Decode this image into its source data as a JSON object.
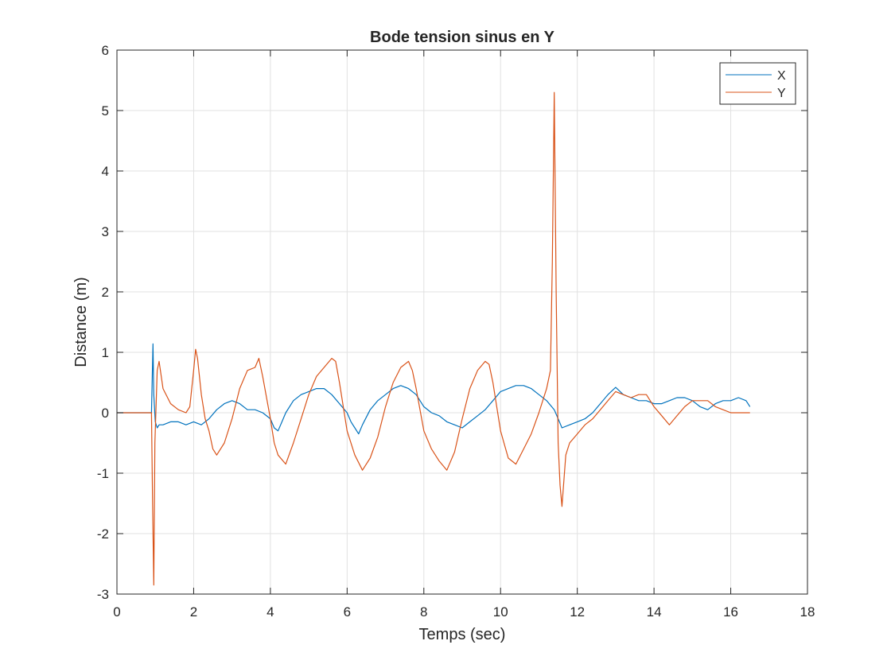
{
  "chart_data": {
    "type": "line",
    "title": "Bode tension sinus en Y",
    "xlabel": "Temps (sec)",
    "ylabel": "Distance (m)",
    "xlim": [
      0,
      18
    ],
    "ylim": [
      -3,
      6
    ],
    "xticks": [
      0,
      2,
      4,
      6,
      8,
      10,
      12,
      14,
      16,
      18
    ],
    "yticks": [
      -3,
      -2,
      -1,
      0,
      1,
      2,
      3,
      4,
      5,
      6
    ],
    "grid": true,
    "legend_position": "top-right",
    "series": [
      {
        "name": "X",
        "color": "#0072BD",
        "x": [
          0,
          0.9,
          0.92,
          0.94,
          0.96,
          1.0,
          1.05,
          1.1,
          1.2,
          1.4,
          1.6,
          1.8,
          2.0,
          2.2,
          2.4,
          2.6,
          2.8,
          3.0,
          3.2,
          3.4,
          3.6,
          3.8,
          4.0,
          4.1,
          4.2,
          4.3,
          4.4,
          4.6,
          4.8,
          5.0,
          5.2,
          5.4,
          5.6,
          5.8,
          6.0,
          6.1,
          6.2,
          6.3,
          6.4,
          6.6,
          6.8,
          7.0,
          7.2,
          7.4,
          7.6,
          7.8,
          8.0,
          8.2,
          8.4,
          8.6,
          8.8,
          9.0,
          9.2,
          9.4,
          9.6,
          9.8,
          10.0,
          10.2,
          10.4,
          10.6,
          10.8,
          11.0,
          11.2,
          11.4,
          11.5,
          11.6,
          11.8,
          12.0,
          12.2,
          12.4,
          12.6,
          12.8,
          13.0,
          13.2,
          13.4,
          13.6,
          13.8,
          14.0,
          14.2,
          14.4,
          14.6,
          14.8,
          15.0,
          15.2,
          15.4,
          15.6,
          15.8,
          16.0,
          16.2,
          16.4,
          16.5
        ],
        "y": [
          0,
          0,
          0.6,
          1.14,
          0.3,
          -0.15,
          -0.25,
          -0.2,
          -0.2,
          -0.15,
          -0.15,
          -0.2,
          -0.15,
          -0.2,
          -0.1,
          0.05,
          0.15,
          0.2,
          0.15,
          0.05,
          0.05,
          0.0,
          -0.1,
          -0.25,
          -0.3,
          -0.15,
          0.0,
          0.2,
          0.3,
          0.35,
          0.4,
          0.4,
          0.3,
          0.15,
          0.0,
          -0.15,
          -0.25,
          -0.35,
          -0.2,
          0.05,
          0.2,
          0.3,
          0.4,
          0.45,
          0.4,
          0.3,
          0.1,
          0.0,
          -0.05,
          -0.15,
          -0.2,
          -0.25,
          -0.15,
          -0.05,
          0.05,
          0.2,
          0.35,
          0.4,
          0.45,
          0.45,
          0.4,
          0.3,
          0.2,
          0.05,
          -0.1,
          -0.25,
          -0.2,
          -0.15,
          -0.1,
          0.0,
          0.15,
          0.3,
          0.42,
          0.3,
          0.25,
          0.2,
          0.2,
          0.15,
          0.15,
          0.2,
          0.25,
          0.25,
          0.2,
          0.1,
          0.05,
          0.15,
          0.2,
          0.2,
          0.25,
          0.2,
          0.1
        ]
      },
      {
        "name": "Y",
        "color": "#D95319",
        "x": [
          0,
          0.9,
          0.93,
          0.96,
          0.99,
          1.05,
          1.1,
          1.2,
          1.4,
          1.6,
          1.8,
          1.9,
          2.0,
          2.05,
          2.1,
          2.2,
          2.3,
          2.4,
          2.5,
          2.6,
          2.8,
          3.0,
          3.2,
          3.4,
          3.6,
          3.7,
          3.8,
          4.0,
          4.1,
          4.2,
          4.4,
          4.6,
          4.8,
          5.0,
          5.2,
          5.4,
          5.6,
          5.7,
          5.8,
          6.0,
          6.2,
          6.4,
          6.6,
          6.8,
          7.0,
          7.2,
          7.4,
          7.6,
          7.7,
          7.8,
          8.0,
          8.2,
          8.4,
          8.6,
          8.8,
          9.0,
          9.2,
          9.4,
          9.6,
          9.7,
          9.8,
          10.0,
          10.2,
          10.4,
          10.6,
          10.8,
          11.0,
          11.2,
          11.3,
          11.35,
          11.4,
          11.45,
          11.5,
          11.55,
          11.6,
          11.7,
          11.8,
          12.0,
          12.2,
          12.4,
          12.6,
          12.8,
          13.0,
          13.2,
          13.4,
          13.6,
          13.8,
          14.0,
          14.2,
          14.4,
          14.6,
          14.8,
          15.0,
          15.2,
          15.4,
          15.6,
          15.8,
          16.0,
          16.2,
          16.4,
          16.5
        ],
        "y": [
          0,
          0,
          -1.5,
          -2.85,
          -0.5,
          0.7,
          0.85,
          0.4,
          0.15,
          0.05,
          0.0,
          0.1,
          0.7,
          1.05,
          0.9,
          0.3,
          -0.1,
          -0.3,
          -0.6,
          -0.7,
          -0.5,
          -0.1,
          0.4,
          0.7,
          0.75,
          0.9,
          0.6,
          -0.1,
          -0.5,
          -0.7,
          -0.85,
          -0.5,
          -0.1,
          0.3,
          0.6,
          0.75,
          0.9,
          0.85,
          0.5,
          -0.3,
          -0.7,
          -0.95,
          -0.75,
          -0.4,
          0.1,
          0.5,
          0.75,
          0.85,
          0.7,
          0.4,
          -0.3,
          -0.6,
          -0.8,
          -0.95,
          -0.65,
          -0.1,
          0.4,
          0.7,
          0.85,
          0.8,
          0.5,
          -0.3,
          -0.75,
          -0.85,
          -0.6,
          -0.35,
          0.0,
          0.4,
          0.7,
          2.5,
          5.3,
          2.0,
          -0.5,
          -1.2,
          -1.55,
          -0.7,
          -0.5,
          -0.35,
          -0.2,
          -0.1,
          0.05,
          0.2,
          0.35,
          0.3,
          0.25,
          0.3,
          0.3,
          0.1,
          -0.05,
          -0.2,
          -0.05,
          0.1,
          0.2,
          0.2,
          0.2,
          0.1,
          0.05,
          0.0,
          0.0,
          0.0,
          0.0
        ]
      }
    ]
  }
}
